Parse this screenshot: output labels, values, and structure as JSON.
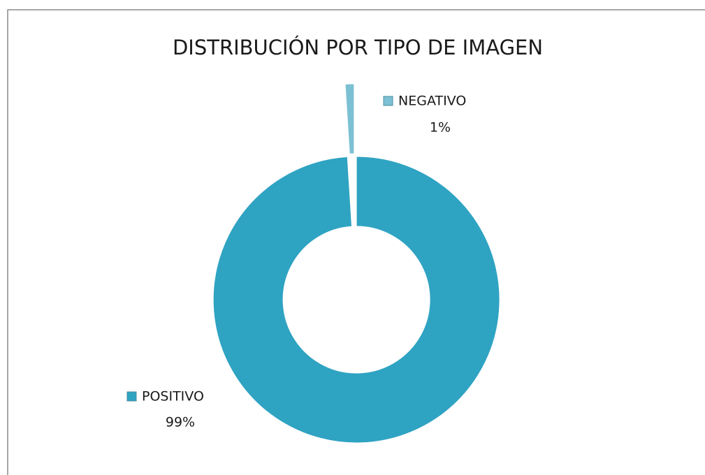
{
  "chart_data": {
    "type": "donut",
    "title": "DISTRIBUCIÓN POR TIPO DE IMAGEN",
    "categories": [
      "POSITIVO",
      "NEGATIVO"
    ],
    "values": [
      99,
      1
    ],
    "value_labels": [
      "99%",
      "1%"
    ],
    "colors": [
      "#2fa3c2",
      "#7cc0d3"
    ]
  }
}
